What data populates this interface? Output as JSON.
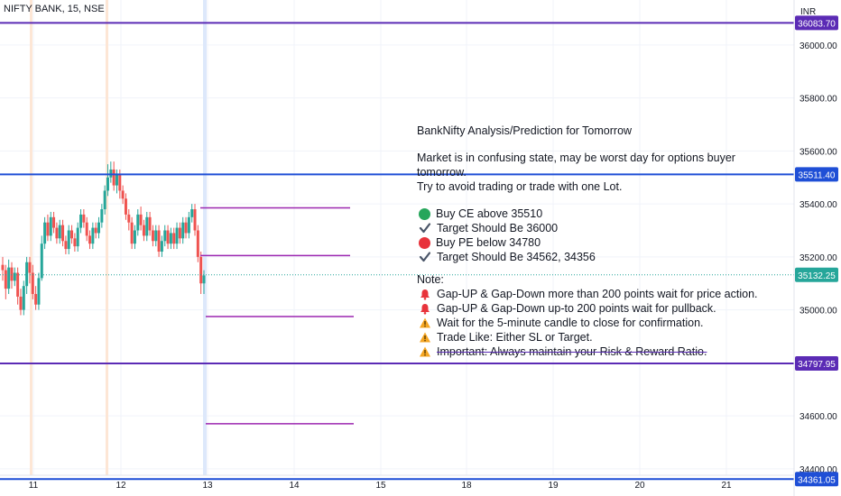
{
  "header": {
    "symbol_label": "NIFTY BANK, 15, NSE",
    "currency": "INR"
  },
  "chart_data": {
    "type": "candlestick",
    "ylim": [
      34300,
      36170
    ],
    "y_ticks": [
      34400,
      34600,
      35000,
      35200,
      35400,
      35600,
      35800,
      36000
    ],
    "y_tick_labels": [
      "34400.00",
      "34600.00",
      "35000.00",
      "35200.00",
      "35400.00",
      "35600.00",
      "35800.00",
      "36000.00"
    ],
    "x_ticks": [
      "11",
      "12",
      "13",
      "14",
      "15",
      "18",
      "19",
      "20",
      "21"
    ],
    "current_price": 35132.25,
    "current_price_label": "35132.25",
    "horizontal_levels": [
      {
        "value": 36083.7,
        "label": "36083.70",
        "color": "#5b2bb5"
      },
      {
        "value": 35511.4,
        "label": "35511.40",
        "color": "#1f4fd6"
      },
      {
        "value": 34797.95,
        "label": "34797.95",
        "color": "#5b2bb5"
      },
      {
        "value": 34361.05,
        "label": "34361.05",
        "color": "#1f4fd6"
      }
    ],
    "projection_segments": [
      35385,
      35205,
      34975,
      34570
    ],
    "candles": [
      [
        35170,
        35150,
        35200,
        35110
      ],
      [
        35150,
        35080,
        35170,
        35040
      ],
      [
        35080,
        35160,
        35190,
        35060
      ],
      [
        35160,
        35110,
        35180,
        35080
      ],
      [
        35110,
        35140,
        35160,
        35090
      ],
      [
        35140,
        35050,
        35160,
        35020
      ],
      [
        35050,
        35000,
        35080,
        34980
      ],
      [
        35000,
        35090,
        35110,
        34980
      ],
      [
        35090,
        35180,
        35200,
        35060
      ],
      [
        35180,
        35140,
        35200,
        35100
      ],
      [
        35140,
        35060,
        35170,
        35040
      ],
      [
        35060,
        35020,
        35090,
        35000
      ],
      [
        35020,
        35120,
        35140,
        35000
      ],
      [
        35120,
        35250,
        35280,
        35110
      ],
      [
        35250,
        35330,
        35350,
        35230
      ],
      [
        35330,
        35280,
        35360,
        35260
      ],
      [
        35280,
        35350,
        35370,
        35260
      ],
      [
        35350,
        35310,
        35370,
        35290
      ],
      [
        35310,
        35270,
        35330,
        35250
      ],
      [
        35270,
        35320,
        35340,
        35250
      ],
      [
        35320,
        35260,
        35340,
        35240
      ],
      [
        35260,
        35230,
        35280,
        35210
      ],
      [
        35230,
        35300,
        35320,
        35210
      ],
      [
        35300,
        35270,
        35320,
        35250
      ],
      [
        35270,
        35240,
        35290,
        35220
      ],
      [
        35240,
        35310,
        35330,
        35220
      ],
      [
        35310,
        35360,
        35380,
        35290
      ],
      [
        35360,
        35330,
        35380,
        35310
      ],
      [
        35330,
        35280,
        35350,
        35260
      ],
      [
        35280,
        35250,
        35300,
        35230
      ],
      [
        35250,
        35310,
        35330,
        35230
      ],
      [
        35310,
        35290,
        35330,
        35270
      ],
      [
        35290,
        35330,
        35350,
        35270
      ],
      [
        35330,
        35380,
        35400,
        35310
      ],
      [
        35380,
        35450,
        35470,
        35360
      ],
      [
        35450,
        35500,
        35550,
        35430
      ],
      [
        35500,
        35530,
        35560,
        35480
      ],
      [
        35530,
        35470,
        35560,
        35450
      ],
      [
        35470,
        35510,
        35530,
        35440
      ],
      [
        35510,
        35450,
        35530,
        35420
      ],
      [
        35450,
        35420,
        35470,
        35400
      ],
      [
        35420,
        35360,
        35440,
        35340
      ],
      [
        35360,
        35330,
        35380,
        35300
      ],
      [
        35330,
        35250,
        35350,
        35230
      ],
      [
        35250,
        35300,
        35320,
        35230
      ],
      [
        35300,
        35360,
        35380,
        35280
      ],
      [
        35360,
        35320,
        35390,
        35300
      ],
      [
        35320,
        35280,
        35340,
        35260
      ],
      [
        35280,
        35350,
        35370,
        35260
      ],
      [
        35350,
        35300,
        35370,
        35280
      ],
      [
        35300,
        35260,
        35320,
        35240
      ],
      [
        35260,
        35300,
        35320,
        35240
      ],
      [
        35300,
        35220,
        35320,
        35200
      ],
      [
        35220,
        35260,
        35280,
        35200
      ],
      [
        35260,
        35300,
        35320,
        35240
      ],
      [
        35300,
        35250,
        35320,
        35230
      ],
      [
        35250,
        35290,
        35310,
        35230
      ],
      [
        35290,
        35250,
        35310,
        35230
      ],
      [
        35250,
        35310,
        35330,
        35230
      ],
      [
        35310,
        35270,
        35330,
        35250
      ],
      [
        35270,
        35330,
        35350,
        35250
      ],
      [
        35330,
        35290,
        35350,
        35270
      ],
      [
        35290,
        35350,
        35370,
        35270
      ],
      [
        35350,
        35380,
        35400,
        35330
      ],
      [
        35380,
        35300,
        35400,
        35280
      ],
      [
        35300,
        35200,
        35320,
        35180
      ],
      [
        35200,
        35100,
        35220,
        35060
      ],
      [
        35100,
        35130,
        35150,
        35060
      ]
    ]
  },
  "note": {
    "title": "BankNifty Analysis/Prediction for Tomorrow",
    "line1": "Market is in confusing state, may be worst day for options buyer tomorrow.",
    "line2": "Try to avoid trading or trade with one Lot.",
    "buy_ce": "Buy CE above 35510",
    "target_ce": "Target Should Be 36000",
    "buy_pe": "Buy PE below 34780",
    "target_pe": "Target Should Be 34562, 34356",
    "note_label": "Note:",
    "note1": "Gap-UP & Gap-Down more than 200 points wait for price action.",
    "note2": "Gap-UP & Gap-Down up-to 200 points wait for pullback.",
    "note3": "Wait for the 5-minute candle to close for confirmation.",
    "note4": "Trade Like: Either SL or Target.",
    "note5": "Important: Always maintain your Risk & Reward Ratio."
  },
  "colors": {
    "up": "#26a69a",
    "down": "#ef5350",
    "projection": "#9c27b0",
    "grid": "#f0f3fa",
    "price_line": "#26a69a"
  }
}
